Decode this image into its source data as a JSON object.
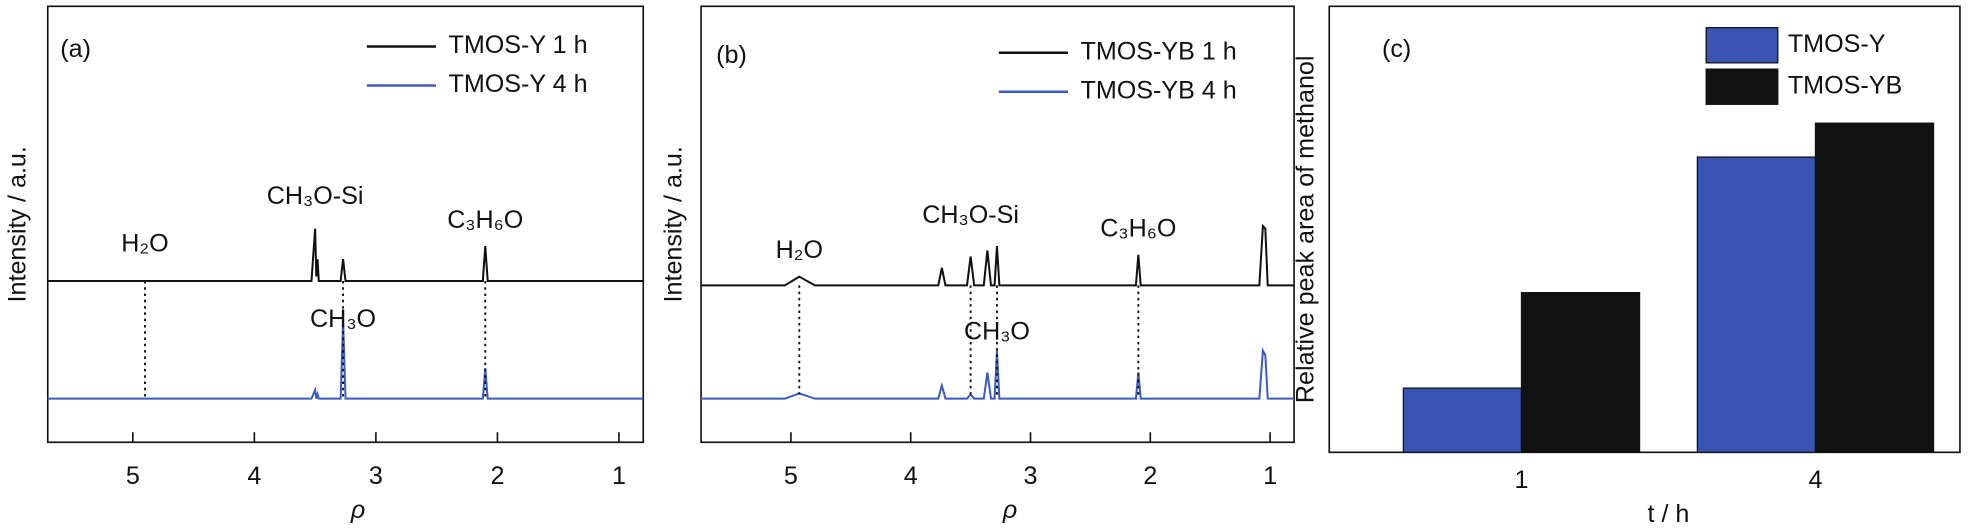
{
  "chart_data": [
    {
      "type": "line",
      "panel_label": "(a)",
      "xlabel": "ρ",
      "ylabel": "Intensity / a.u.",
      "xlim": [
        5.7,
        0.8
      ],
      "ylim": [
        0,
        100
      ],
      "xticks": [
        5,
        4,
        3,
        2,
        1
      ],
      "legend": "upper right",
      "x": [
        5.7,
        3.53,
        3.5,
        3.49,
        3.48,
        3.47,
        3.45,
        3.29,
        3.27,
        3.25,
        2.12,
        2.1,
        2.08,
        0.8
      ],
      "series": [
        {
          "name": "TMOS-Y 1 h",
          "color": "#111111",
          "values": [
            37,
            37,
            49,
            38,
            42,
            37,
            37,
            37,
            42,
            37,
            37,
            45,
            37,
            37
          ]
        },
        {
          "name": "TMOS-Y 4 h",
          "color": "#3b5bc4",
          "values": [
            10,
            10,
            12,
            10,
            11,
            10,
            10,
            10,
            28,
            10,
            10,
            17,
            10,
            10
          ]
        }
      ],
      "annotations": [
        {
          "text": "H₂O",
          "x": 4.9
        },
        {
          "text": "CH₃O-Si",
          "x": 3.5
        },
        {
          "text": "C₃H₆O",
          "x": 2.1
        },
        {
          "text": "CH₃O",
          "x": 3.27
        }
      ],
      "reference_lines": [
        4.9,
        3.27,
        2.1
      ]
    },
    {
      "type": "line",
      "panel_label": "(b)",
      "xlabel": "ρ",
      "ylabel": "Intensity / a.u.",
      "xlim": [
        5.75,
        0.8
      ],
      "ylim": [
        0,
        100
      ],
      "xticks": [
        5,
        4,
        3,
        2,
        1
      ],
      "legend": "upper right",
      "x": [
        5.75,
        5.05,
        4.93,
        4.8,
        3.77,
        3.74,
        3.71,
        3.53,
        3.5,
        3.47,
        3.39,
        3.36,
        3.33,
        3.3,
        3.28,
        3.26,
        2.12,
        2.1,
        2.08,
        1.09,
        1.06,
        1.04,
        1.02,
        0.8
      ],
      "series": [
        {
          "name": "TMOS-YB 1 h",
          "color": "#111111",
          "values": [
            36,
            36,
            38,
            36,
            36,
            40,
            36,
            36,
            42.6,
            36,
            36,
            44,
            36,
            36,
            45,
            36,
            36,
            43,
            36,
            36,
            49.6,
            49,
            36,
            36
          ]
        },
        {
          "name": "TMOS-YB 4 h",
          "color": "#3b5bc4",
          "values": [
            10,
            10,
            11.2,
            10,
            10,
            13,
            10,
            10,
            11,
            10,
            10,
            16,
            10,
            10,
            21,
            10,
            10,
            16,
            10,
            10,
            21,
            20,
            10,
            10
          ]
        }
      ],
      "annotations": [
        {
          "text": "H₂O",
          "x": 4.93
        },
        {
          "text": "CH₃O-Si",
          "x": 3.5
        },
        {
          "text": "C₃H₆O",
          "x": 2.1
        },
        {
          "text": "CH₃O",
          "x": 3.28
        }
      ],
      "reference_lines": [
        4.93,
        3.5,
        3.28,
        2.1
      ]
    },
    {
      "type": "bar",
      "panel_label": "(c)",
      "xlabel": "t / h",
      "ylabel": "Relative peak area of methanol",
      "ylim": [
        0,
        100
      ],
      "categories": [
        "1",
        "4"
      ],
      "legend": "upper right",
      "series": [
        {
          "name": "TMOS-Y",
          "color": "#3a54b4",
          "values": [
            14.4,
            66.2
          ]
        },
        {
          "name": "TMOS-YB",
          "color": "#111111",
          "values": [
            35.8,
            73.8
          ]
        }
      ]
    }
  ]
}
